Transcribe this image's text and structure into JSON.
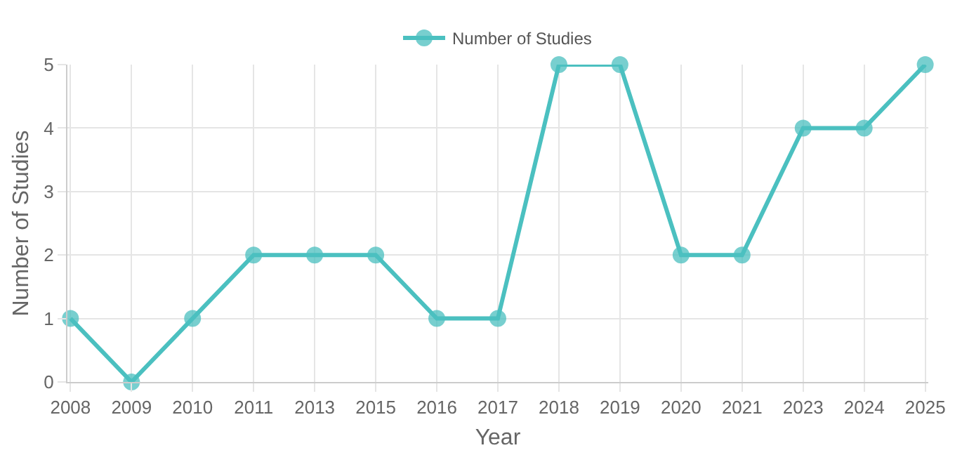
{
  "chart_data": {
    "type": "line",
    "xlabel": "Year",
    "ylabel": "Number of Studies",
    "categories": [
      "2008",
      "2009",
      "2010",
      "2011",
      "2013",
      "2015",
      "2016",
      "2017",
      "2018",
      "2019",
      "2020",
      "2021",
      "2023",
      "2024",
      "2025"
    ],
    "series": [
      {
        "name": "Number of Studies",
        "color": "#4bc0c0",
        "values": [
          1,
          0,
          1,
          2,
          2,
          2,
          1,
          1,
          5,
          5,
          2,
          2,
          4,
          4,
          5
        ]
      }
    ],
    "ylim": [
      0,
      5
    ],
    "yticks": [
      0,
      1,
      2,
      3,
      4,
      5
    ],
    "grid": true,
    "legend": "top",
    "marker": "circle",
    "line_style": "solid"
  }
}
